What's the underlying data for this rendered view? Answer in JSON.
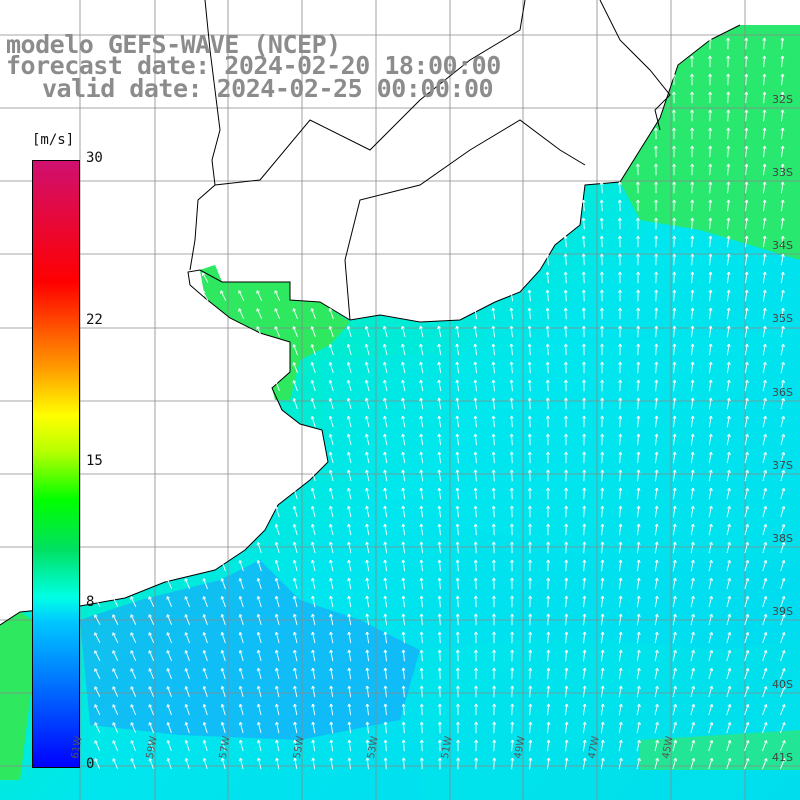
{
  "header": {
    "line1": "modelo GEFS-WAVE (NCEP)",
    "line2": "forecast date: 2024-02-20 18:00:00",
    "line3": "valid date: 2024-02-25 00:00:00"
  },
  "colorbar": {
    "unit": "[m/s]",
    "ticks": [
      {
        "label": "30",
        "value": 30
      },
      {
        "label": "22",
        "value": 22
      },
      {
        "label": "15",
        "value": 15
      },
      {
        "label": "8",
        "value": 8
      },
      {
        "label": "0",
        "value": 0
      }
    ],
    "colors": [
      "#0000ff",
      "#00c8ff",
      "#00ffe6",
      "#00e060",
      "#00ff00",
      "#ffff00",
      "#ff9900",
      "#ff0000",
      "#d01070"
    ]
  },
  "axes": {
    "lon_labels": [
      "61W",
      "59W",
      "57W",
      "55W",
      "53W",
      "51W",
      "49W",
      "47W",
      "45W"
    ],
    "lat_labels": [
      "32S",
      "33S",
      "34S",
      "35S",
      "36S",
      "37S",
      "38S",
      "39S",
      "40S",
      "41S"
    ]
  },
  "colors": {
    "land": "#ffffff",
    "coast": "#000000",
    "grid": "#8a8a8a",
    "arrow": "#ffffff"
  }
}
